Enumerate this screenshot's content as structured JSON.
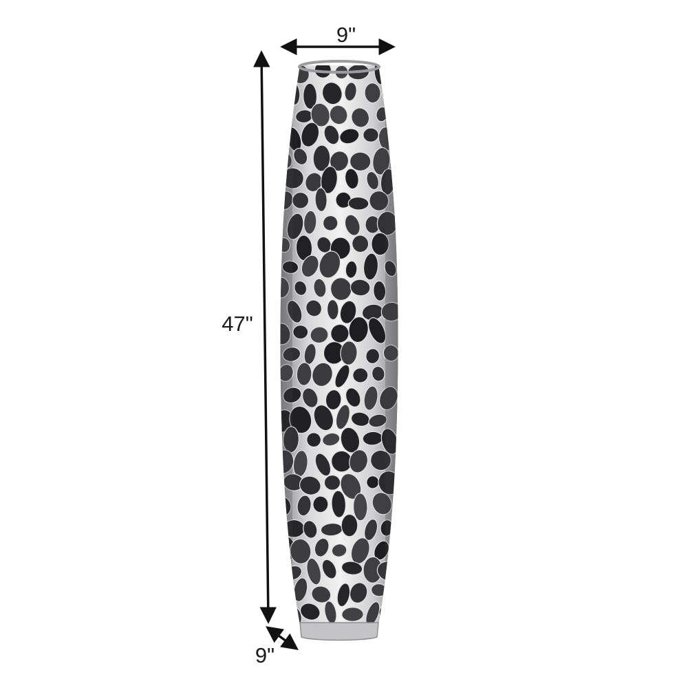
{
  "dimensions": {
    "width_label": "9\"",
    "height_label": "47\"",
    "depth_label": "9\""
  },
  "product": {
    "icon": "coral-branch-vase",
    "finish_color": "#b8b8ba",
    "dark_color": "#2c2c2e"
  },
  "colors": {
    "background": "#ffffff",
    "dimension_lines": "#111111",
    "text": "#1a1a1a"
  }
}
